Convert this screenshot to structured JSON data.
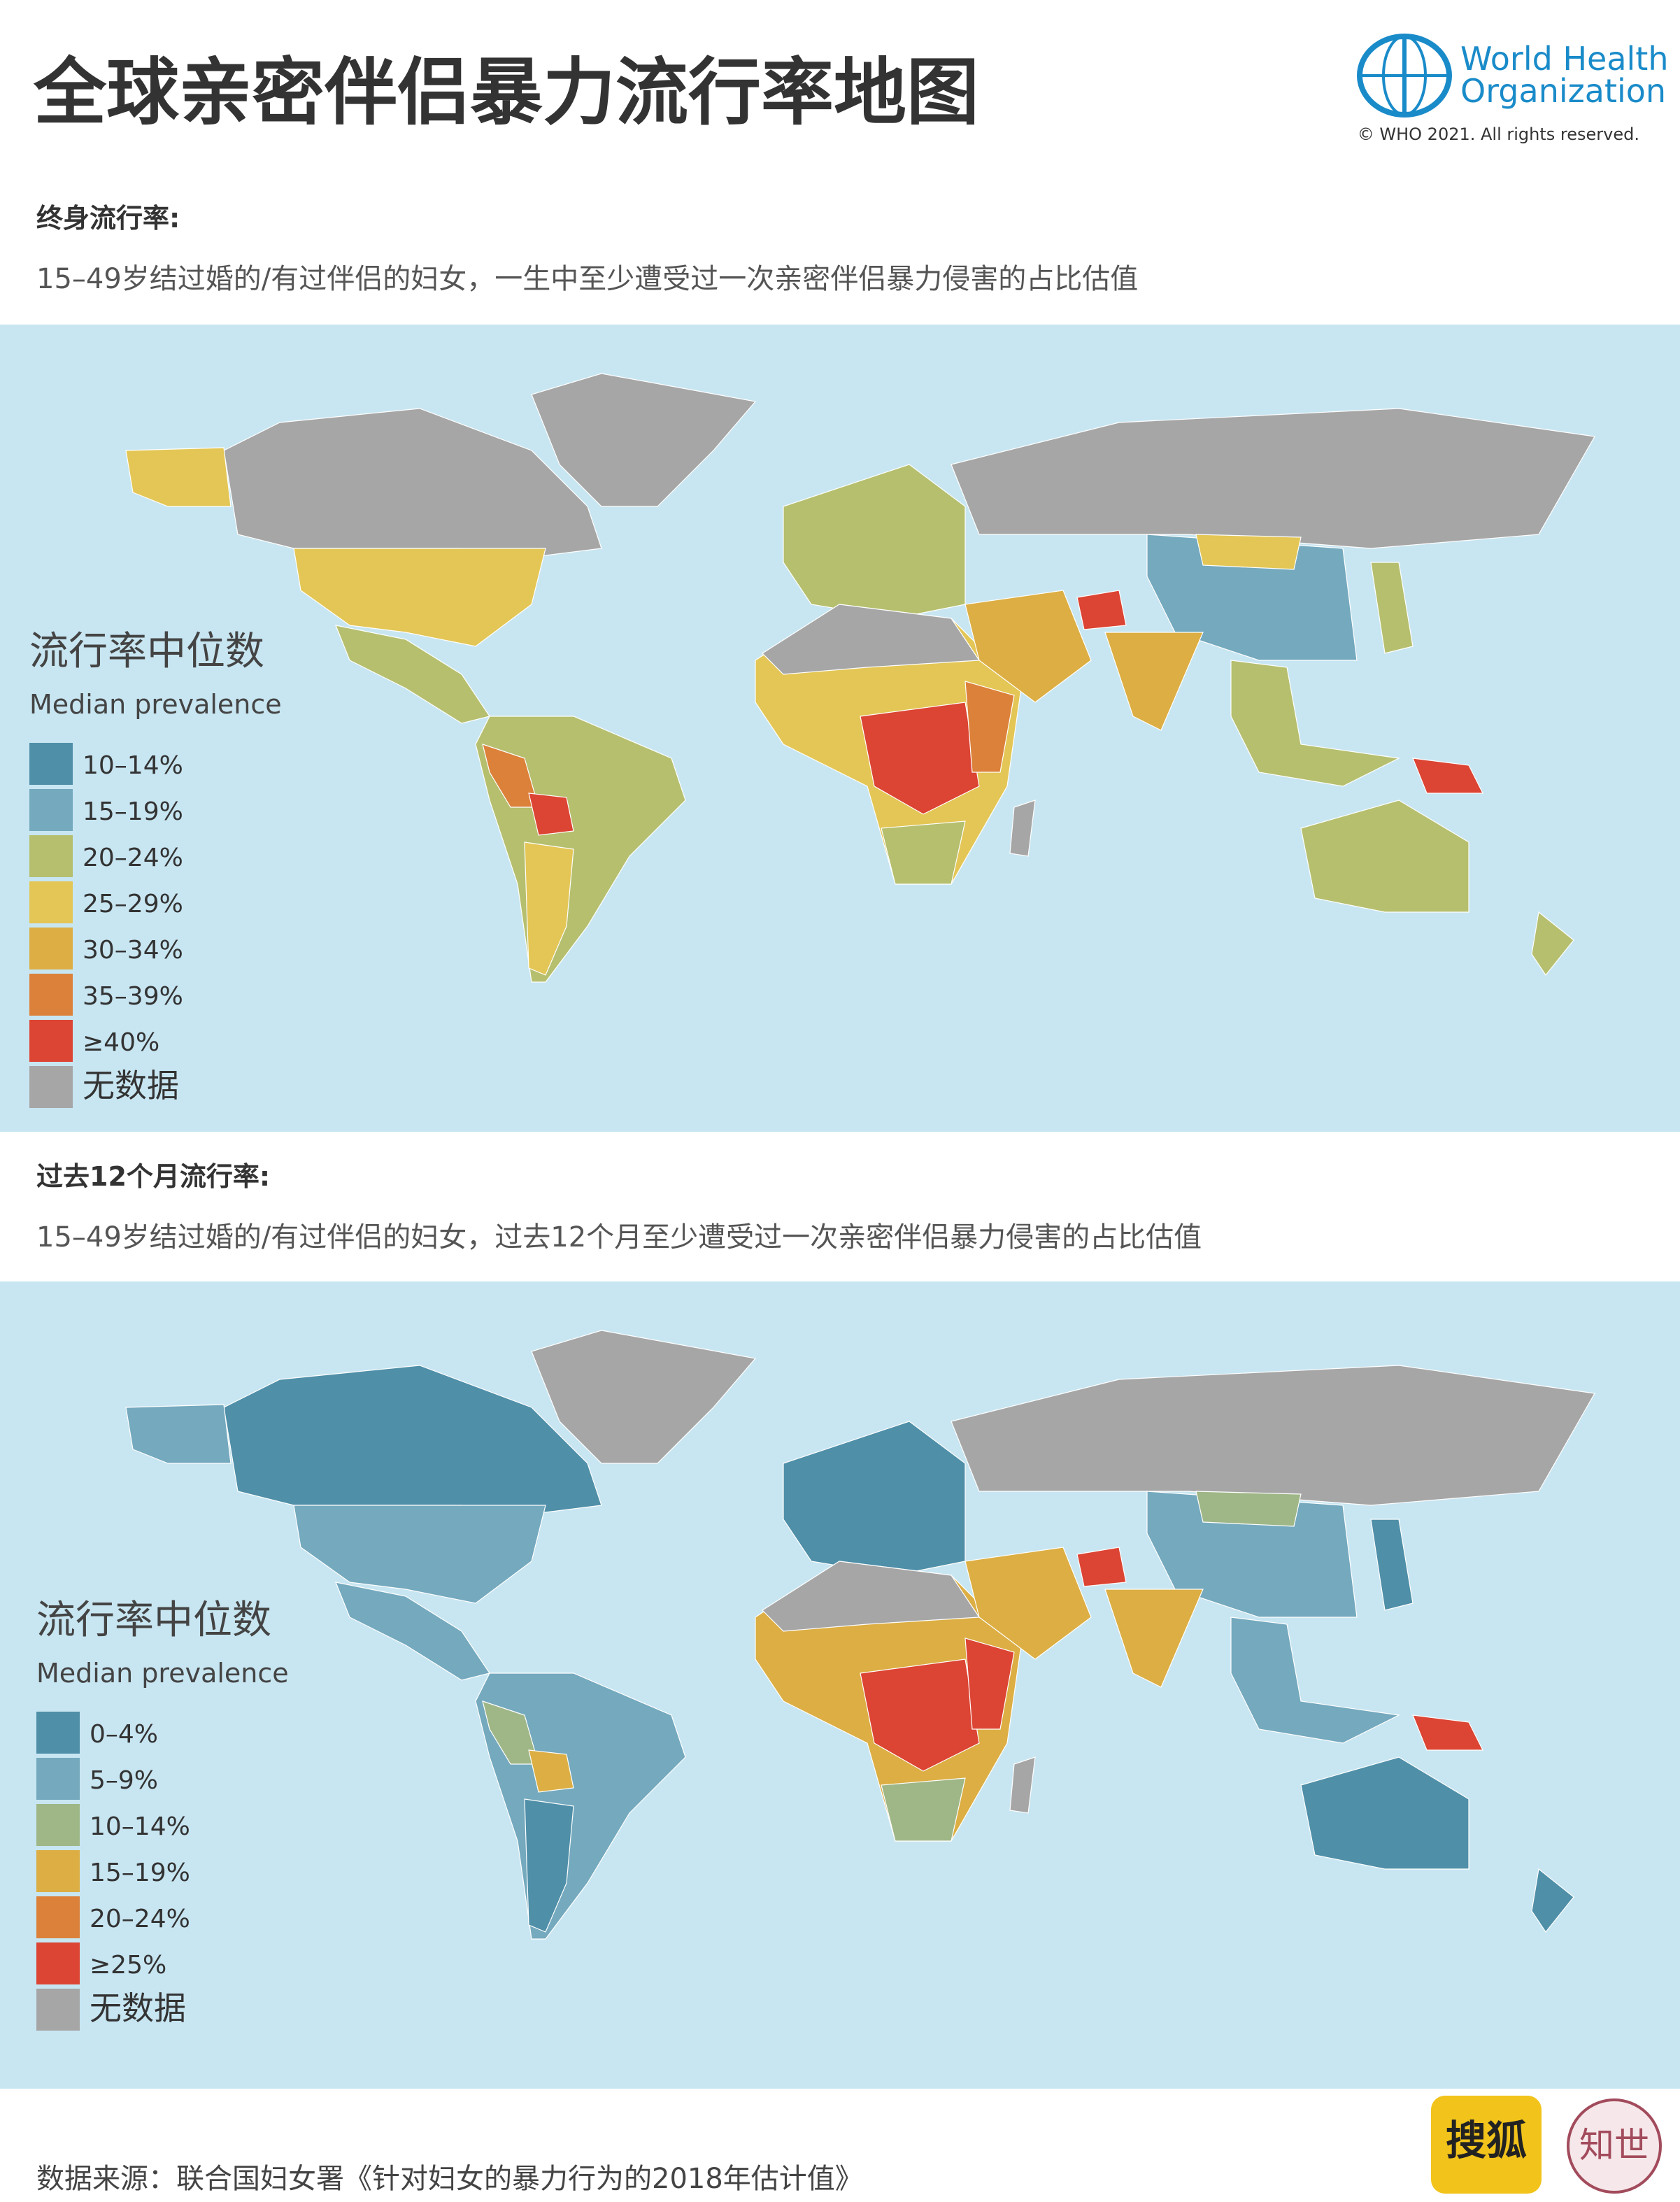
{
  "header": {
    "title": "全球亲密伴侣暴力流行率地图",
    "logo_text": [
      "World Health",
      "Organization"
    ],
    "copyright": "© WHO 2021. All rights reserved."
  },
  "maps": [
    {
      "heading": "终身流行率:",
      "description": "15–49岁结过婚的/有过伴侣的妇女，一生中至少遭受过一次亲密伴侣暴力侵害的占比估值",
      "legend": {
        "title": "流行率中位数",
        "subtitle": "Median prevalence",
        "items": [
          {
            "label": "10–14%",
            "color": "#4f8fa8"
          },
          {
            "label": "15–19%",
            "color": "#74a9be"
          },
          {
            "label": "20–24%",
            "color": "#b5bf6e"
          },
          {
            "label": "25–29%",
            "color": "#e3c655"
          },
          {
            "label": "30–34%",
            "color": "#dcae43"
          },
          {
            "label": "35–39%",
            "color": "#dc813a"
          },
          {
            "label": "≥40%",
            "color": "#dc4433"
          },
          {
            "label": "无数据",
            "color": "#a6a6a6"
          }
        ]
      }
    },
    {
      "heading": "过去12个月流行率:",
      "description": "15–49岁结过婚的/有过伴侣的妇女，过去12个月至少遭受过一次亲密伴侣暴力侵害的占比估值",
      "legend": {
        "title": "流行率中位数",
        "subtitle": "Median prevalence",
        "items": [
          {
            "label": "0–4%",
            "color": "#4f8fa8"
          },
          {
            "label": "5–9%",
            "color": "#74a9be"
          },
          {
            "label": "10–14%",
            "color": "#9fb787"
          },
          {
            "label": "15–19%",
            "color": "#dcae43"
          },
          {
            "label": "20–24%",
            "color": "#dc813a"
          },
          {
            "label": "≥25%",
            "color": "#dc4433"
          },
          {
            "label": "无数据",
            "color": "#a6a6a6"
          }
        ]
      }
    }
  ],
  "source": "数据来源：联合国妇女署《针对妇女的暴力行为的2018年估计值》",
  "badges": [
    "搜狐",
    "知世"
  ]
}
